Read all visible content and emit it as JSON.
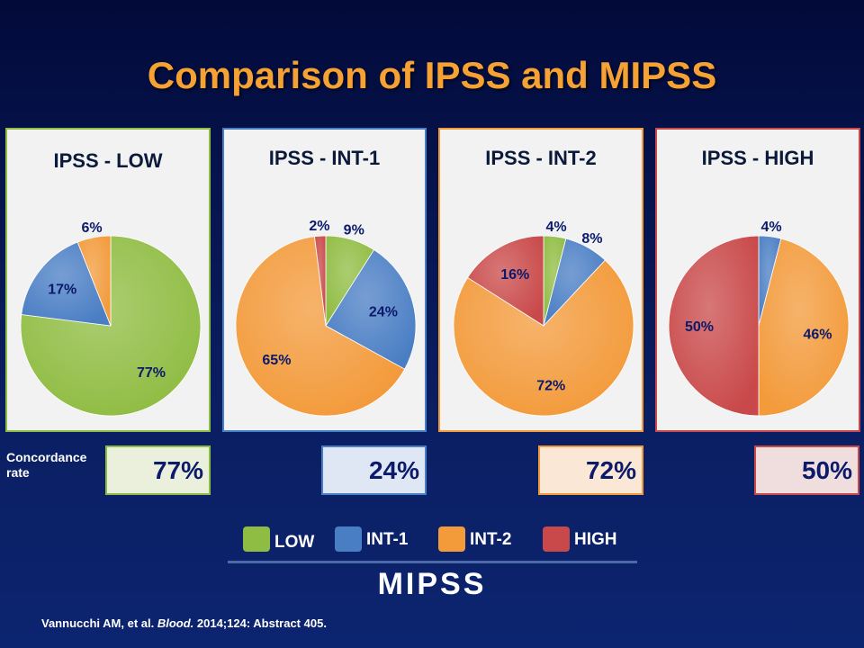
{
  "title": "Comparison of IPSS and MIPSS",
  "colors": {
    "LOW": "#8fbc42",
    "INT-1": "#4a7ec4",
    "INT-2": "#f39a3a",
    "HIGH": "#c9494a"
  },
  "chart_data": [
    {
      "type": "pie",
      "title": "IPSS - LOW",
      "border": "#8fbc42",
      "slices": [
        {
          "cat": "LOW",
          "value": 77,
          "label": "77%"
        },
        {
          "cat": "INT-1",
          "value": 17,
          "label": "17%"
        },
        {
          "cat": "INT-2",
          "value": 6,
          "label": "6%"
        }
      ],
      "concordance": "77%"
    },
    {
      "type": "pie",
      "title": "IPSS - INT-1",
      "border": "#4a7ec4",
      "slices": [
        {
          "cat": "LOW",
          "value": 9,
          "label": "9%"
        },
        {
          "cat": "INT-1",
          "value": 24,
          "label": "24%"
        },
        {
          "cat": "INT-2",
          "value": 65,
          "label": "65%"
        },
        {
          "cat": "HIGH",
          "value": 2,
          "label": "2%"
        }
      ],
      "concordance": "24%"
    },
    {
      "type": "pie",
      "title": "IPSS - INT-2",
      "border": "#f39a3a",
      "slices": [
        {
          "cat": "LOW",
          "value": 4,
          "label": "4%"
        },
        {
          "cat": "INT-1",
          "value": 8,
          "label": "8%"
        },
        {
          "cat": "INT-2",
          "value": 72,
          "label": "72%"
        },
        {
          "cat": "HIGH",
          "value": 16,
          "label": "16%"
        }
      ],
      "concordance": "72%"
    },
    {
      "type": "pie",
      "title": "IPSS - HIGH",
      "border": "#c9494a",
      "slices": [
        {
          "cat": "INT-1",
          "value": 4,
          "label": "4%"
        },
        {
          "cat": "INT-2",
          "value": 46,
          "label": "46%"
        },
        {
          "cat": "HIGH",
          "value": 50,
          "label": "50%"
        }
      ],
      "concordance": "50%"
    }
  ],
  "concordance_label_line1": "Concordance",
  "concordance_label_line2": "rate",
  "legend": [
    {
      "cat": "LOW",
      "label": "LOW"
    },
    {
      "cat": "INT-1",
      "label": "INT-1"
    },
    {
      "cat": "INT-2",
      "label": "INT-2"
    },
    {
      "cat": "HIGH",
      "label": "HIGH"
    }
  ],
  "legend_title": "MIPSS",
  "reference": {
    "authors": "Vannucchi AM, et al. ",
    "journal": "Blood.",
    "details": " 2014;124: Abstract 405."
  }
}
